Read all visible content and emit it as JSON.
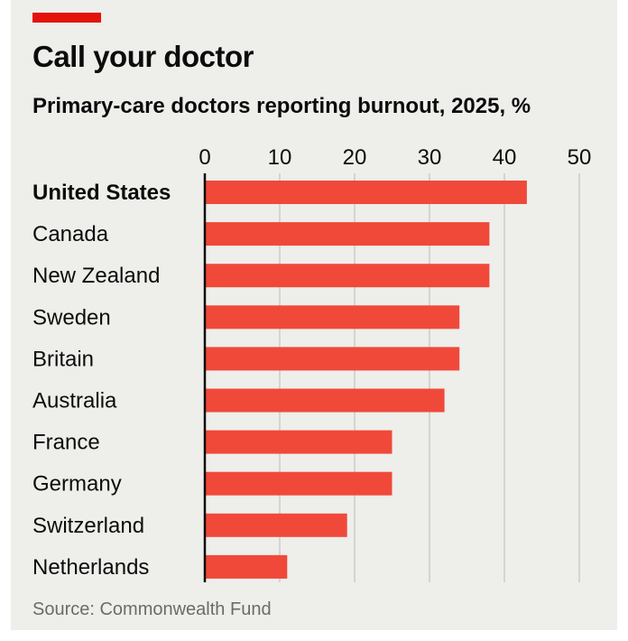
{
  "header": {
    "title": "Call your doctor",
    "subtitle": "Primary-care doctors reporting burnout, 2025, %"
  },
  "footer": {
    "source": "Source: Commonwealth Fund"
  },
  "colors": {
    "bar": "#f0493a",
    "accent": "#e3120b",
    "grid": "#c4c4c0",
    "axis": "#0c0c0c",
    "background": "#eeeeea"
  },
  "chart_data": {
    "type": "bar",
    "orientation": "horizontal",
    "title": "Call your doctor",
    "subtitle": "Primary-care doctors reporting burnout, 2025, %",
    "xlabel": "",
    "ylabel": "",
    "xlim": [
      0,
      50
    ],
    "ticks": [
      0,
      10,
      20,
      30,
      40,
      50
    ],
    "tick_position": "top",
    "grid": true,
    "highlight_category": "United States",
    "categories": [
      "United States",
      "Canada",
      "New Zealand",
      "Sweden",
      "Britain",
      "Australia",
      "France",
      "Germany",
      "Switzerland",
      "Netherlands"
    ],
    "values": [
      43,
      38,
      38,
      34,
      34,
      32,
      25,
      25,
      19,
      11
    ]
  }
}
